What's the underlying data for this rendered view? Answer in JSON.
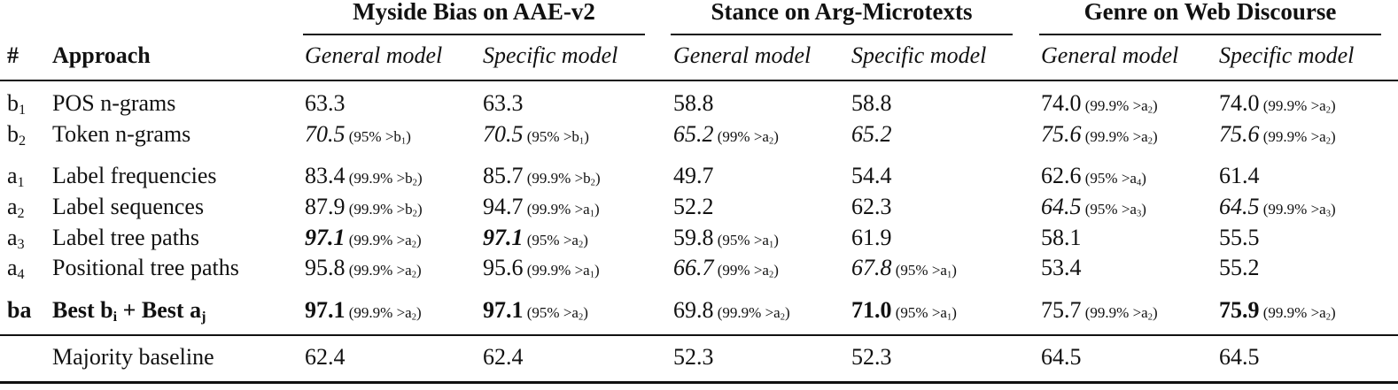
{
  "groups": [
    "Myside Bias on AAE-v2",
    "Stance on Arg-Microtexts",
    "Genre on Web Discourse"
  ],
  "header": {
    "num": "#",
    "approach": "Approach",
    "subcols": [
      "General model",
      "Specific model",
      "General model",
      "Specific model",
      "General model",
      "Specific model"
    ]
  },
  "rows": [
    {
      "id": "b",
      "idx": "1",
      "approach": "POS n-grams",
      "cells": [
        {
          "v": "63.3",
          "s": "",
          "style": "n"
        },
        {
          "v": "63.3",
          "s": "",
          "style": "n"
        },
        {
          "v": "58.8",
          "s": "",
          "style": "n"
        },
        {
          "v": "58.8",
          "s": "",
          "style": "n"
        },
        {
          "v": "74.0",
          "s": "(99.9% >a",
          "sx": "2",
          "style": "n"
        },
        {
          "v": "74.0",
          "s": "(99.9% >a",
          "sx": "2",
          "style": "n"
        }
      ]
    },
    {
      "id": "b",
      "idx": "2",
      "approach": "Token n-grams",
      "cells": [
        {
          "v": "70.5",
          "s": "(95% >b",
          "sx": "1",
          "style": "i"
        },
        {
          "v": "70.5",
          "s": "(95% >b",
          "sx": "1",
          "style": "i"
        },
        {
          "v": "65.2",
          "s": "(99% >a",
          "sx": "2",
          "style": "i"
        },
        {
          "v": "65.2",
          "s": "",
          "style": "i"
        },
        {
          "v": "75.6",
          "s": "(99.9% >a",
          "sx": "2",
          "style": "i"
        },
        {
          "v": "75.6",
          "s": "(99.9% >a",
          "sx": "2",
          "style": "i"
        }
      ]
    },
    {
      "id": "a",
      "idx": "1",
      "approach": "Label frequencies",
      "cells": [
        {
          "v": "83.4",
          "s": "(99.9% >b",
          "sx": "2",
          "style": "n"
        },
        {
          "v": "85.7",
          "s": "(99.9% >b",
          "sx": "2",
          "style": "n"
        },
        {
          "v": "49.7",
          "s": "",
          "style": "n"
        },
        {
          "v": "54.4",
          "s": "",
          "style": "n"
        },
        {
          "v": "62.6",
          "s": "(95% >a",
          "sx": "4",
          "style": "n"
        },
        {
          "v": "61.4",
          "s": "",
          "style": "n"
        }
      ]
    },
    {
      "id": "a",
      "idx": "2",
      "approach": "Label sequences",
      "cells": [
        {
          "v": "87.9",
          "s": "(99.9% >b",
          "sx": "2",
          "style": "n"
        },
        {
          "v": "94.7",
          "s": "(99.9% >a",
          "sx": "1",
          "style": "n"
        },
        {
          "v": "52.2",
          "s": "",
          "style": "n"
        },
        {
          "v": "62.3",
          "s": "",
          "style": "n"
        },
        {
          "v": "64.5",
          "s": "(95% >a",
          "sx": "3",
          "style": "i"
        },
        {
          "v": "64.5",
          "s": "(99.9% >a",
          "sx": "3",
          "style": "i"
        }
      ]
    },
    {
      "id": "a",
      "idx": "3",
      "approach": "Label tree paths",
      "cells": [
        {
          "v": "97.1",
          "s": "(99.9% >a",
          "sx": "2",
          "style": "bi"
        },
        {
          "v": "97.1",
          "s": "(95% >a",
          "sx": "2",
          "style": "bi"
        },
        {
          "v": "59.8",
          "s": "(95% >a",
          "sx": "1",
          "style": "n"
        },
        {
          "v": "61.9",
          "s": "",
          "style": "n"
        },
        {
          "v": "58.1",
          "s": "",
          "style": "n"
        },
        {
          "v": "55.5",
          "s": "",
          "style": "n"
        }
      ]
    },
    {
      "id": "a",
      "idx": "4",
      "approach": "Positional tree paths",
      "cells": [
        {
          "v": "95.8",
          "s": "(99.9% >a",
          "sx": "2",
          "style": "n"
        },
        {
          "v": "95.6",
          "s": "(99.9% >a",
          "sx": "1",
          "style": "n"
        },
        {
          "v": "66.7",
          "s": "(99% >a",
          "sx": "2",
          "style": "i"
        },
        {
          "v": "67.8",
          "s": "(95% >a",
          "sx": "1",
          "style": "i"
        },
        {
          "v": "53.4",
          "s": "",
          "style": "n"
        },
        {
          "v": "55.2",
          "s": "",
          "style": "n"
        }
      ]
    },
    {
      "id": "ba",
      "idx": "",
      "approach": "Best b",
      "approach_sub1": "i",
      "approach_mid": " + Best a",
      "approach_sub2": "j",
      "bold": true,
      "cells": [
        {
          "v": "97.1",
          "s": "(99.9% >a",
          "sx": "2",
          "style": "b"
        },
        {
          "v": "97.1",
          "s": "(95% >a",
          "sx": "2",
          "style": "b"
        },
        {
          "v": "69.8",
          "s": "(99.9% >a",
          "sx": "2",
          "style": "n"
        },
        {
          "v": "71.0",
          "s": "(95% >a",
          "sx": "1",
          "style": "b"
        },
        {
          "v": "75.7",
          "s": "(99.9% >a",
          "sx": "2",
          "style": "n"
        },
        {
          "v": "75.9",
          "s": "(99.9% >a",
          "sx": "2",
          "style": "b"
        }
      ]
    },
    {
      "id": "",
      "idx": "",
      "approach": "Majority baseline",
      "cells": [
        {
          "v": "62.4",
          "s": "",
          "style": "n"
        },
        {
          "v": "62.4",
          "s": "",
          "style": "n"
        },
        {
          "v": "52.3",
          "s": "",
          "style": "n"
        },
        {
          "v": "52.3",
          "s": "",
          "style": "n"
        },
        {
          "v": "64.5",
          "s": "",
          "style": "n"
        },
        {
          "v": "64.5",
          "s": "",
          "style": "n"
        }
      ]
    }
  ],
  "close_paren": ")"
}
